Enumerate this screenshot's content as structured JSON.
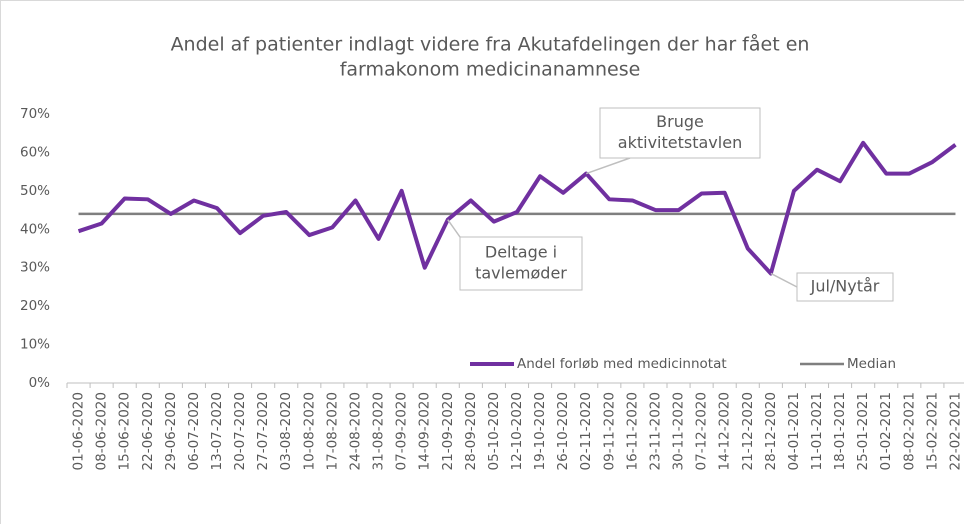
{
  "chart_data": {
    "type": "line",
    "title": [
      "Andel af patienter indlagt videre fra Akutafdelingen der har fået en",
      "farmakonom medicinanamnese"
    ],
    "categories": [
      "01-06-2020",
      "08-06-2020",
      "15-06-2020",
      "22-06-2020",
      "29-06-2020",
      "06-07-2020",
      "13-07-2020",
      "20-07-2020",
      "27-07-2020",
      "03-08-2020",
      "10-08-2020",
      "17-08-2020",
      "24-08-2020",
      "31-08-2020",
      "07-09-2020",
      "14-09-2020",
      "21-09-2020",
      "28-09-2020",
      "05-10-2020",
      "12-10-2020",
      "19-10-2020",
      "26-10-2020",
      "02-11-2020",
      "09-11-2020",
      "16-11-2020",
      "23-11-2020",
      "30-11-2020",
      "07-12-2020",
      "14-12-2020",
      "21-12-2020",
      "28-12-2020",
      "04-01-2021",
      "11-01-2021",
      "18-01-2021",
      "25-01-2021",
      "01-02-2021",
      "08-02-2021",
      "15-02-2021",
      "22-02-2021"
    ],
    "series": [
      {
        "name": "Andel forløb med medicinnotat",
        "color": "#7030a0",
        "values": [
          39.5,
          41.5,
          48,
          47.8,
          44,
          47.5,
          45.5,
          39,
          43.5,
          44.5,
          38.5,
          40.5,
          47.5,
          37.5,
          50,
          30,
          42.5,
          47.5,
          42,
          44.5,
          53.8,
          49.5,
          54.5,
          47.8,
          47.5,
          45,
          45,
          49.3,
          49.5,
          35,
          28.5,
          50,
          55.5,
          52.5,
          62.5,
          54.5,
          54.5,
          57.5,
          62
        ]
      },
      {
        "name": "Median",
        "color": "#7f7f7f",
        "values": [
          44,
          44,
          44,
          44,
          44,
          44,
          44,
          44,
          44,
          44,
          44,
          44,
          44,
          44,
          44,
          44,
          44,
          44,
          44,
          44,
          44,
          44,
          44,
          44,
          44,
          44,
          44,
          44,
          44,
          44,
          44,
          44,
          44,
          44,
          44,
          44,
          44,
          44,
          44
        ]
      }
    ],
    "ylim": [
      0,
      70
    ],
    "yticks": [
      {
        "value": 0,
        "label": "0%"
      },
      {
        "value": 10,
        "label": "10%"
      },
      {
        "value": 20,
        "label": "20%"
      },
      {
        "value": 30,
        "label": "30%"
      },
      {
        "value": 40,
        "label": "40%"
      },
      {
        "value": 50,
        "label": "50%"
      },
      {
        "value": 60,
        "label": "60%"
      },
      {
        "value": 70,
        "label": "70%"
      }
    ],
    "legend": "lower right",
    "annotations": [
      {
        "category": "02-11-2020",
        "text": [
          "Bruge",
          "aktivitetstavlen"
        ]
      },
      {
        "category": "21-09-2020",
        "text": [
          "Deltage i",
          "tavlemøder"
        ]
      },
      {
        "category": "28-12-2020",
        "text": [
          "Jul/Nytår"
        ]
      }
    ]
  }
}
